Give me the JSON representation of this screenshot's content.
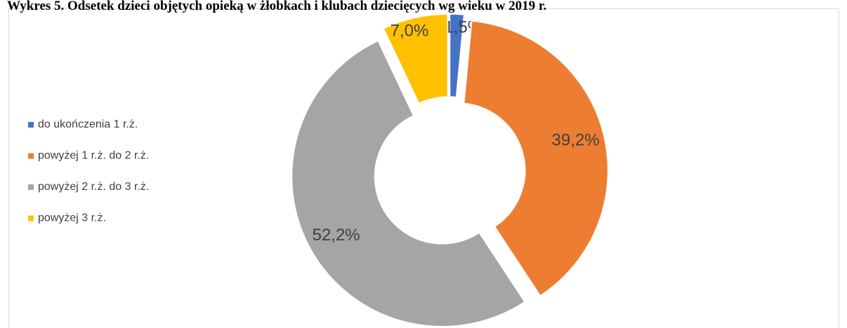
{
  "chart_data": {
    "type": "donut",
    "title": "Wykres 5. Odsetek dzieci objętych opieką w żłobkach i klubach dziecięcych wg wieku w 2019 r.",
    "categories": [
      "do ukończenia 1 r.ż.",
      "powyżej 1 r.ż. do 2 r.ż.",
      "powyżej 2 r.ż. do 3 r.ż.",
      "powyżej 3 r.ż."
    ],
    "values": [
      1.5,
      39.2,
      52.2,
      7.0
    ],
    "value_labels": [
      "1,5%",
      "39,2%",
      "52,2%",
      "7,0%"
    ],
    "colors": [
      "#4472c4",
      "#ed7d31",
      "#a5a5a5",
      "#ffc000"
    ],
    "legend": "left"
  }
}
